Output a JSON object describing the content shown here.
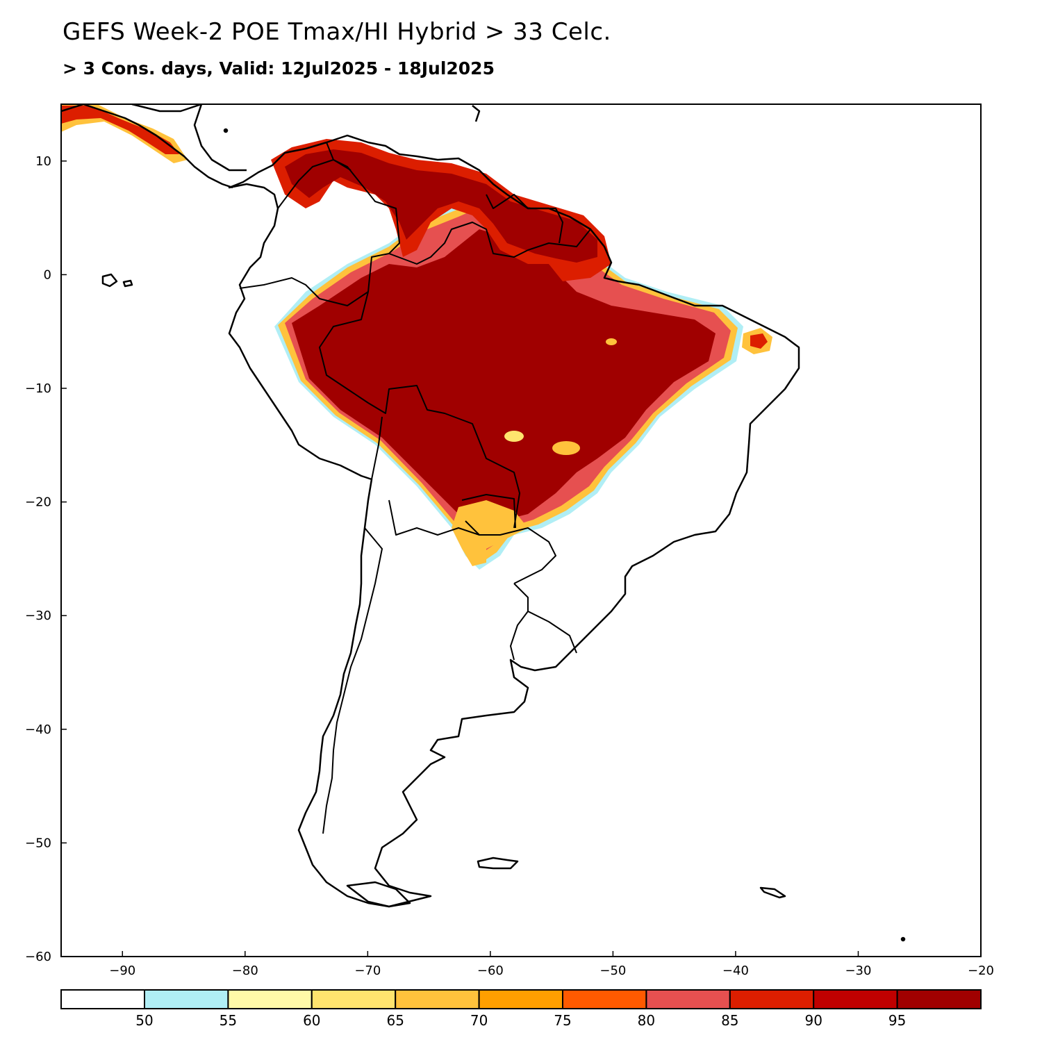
{
  "title": "GEFS Week-2 POE Tmax/HI Hybrid > 33 Celc.",
  "subtitle": "> 3 Cons. days, Valid: 12Jul2025 - 18Jul2025",
  "map": {
    "lon_range": [
      -95,
      -20
    ],
    "lat_range": [
      -60,
      15
    ],
    "x_ticks": [
      "-90",
      "-80",
      "-70",
      "-60",
      "-50",
      "-40",
      "-30",
      "-20"
    ],
    "y_ticks": [
      "10",
      "0",
      "-10",
      "-20",
      "-30",
      "-40",
      "-50",
      "-60"
    ]
  },
  "colorbar": {
    "labels": [
      "50",
      "55",
      "60",
      "65",
      "70",
      "75",
      "80",
      "85",
      "90",
      "95"
    ],
    "colors": [
      "#ffffff",
      "#b0eef5",
      "#fff9a8",
      "#ffe46e",
      "#ffc23c",
      "#ff9f00",
      "#ff5a00",
      "#e65050",
      "#dc1e00",
      "#c00000",
      "#a00000"
    ]
  }
}
